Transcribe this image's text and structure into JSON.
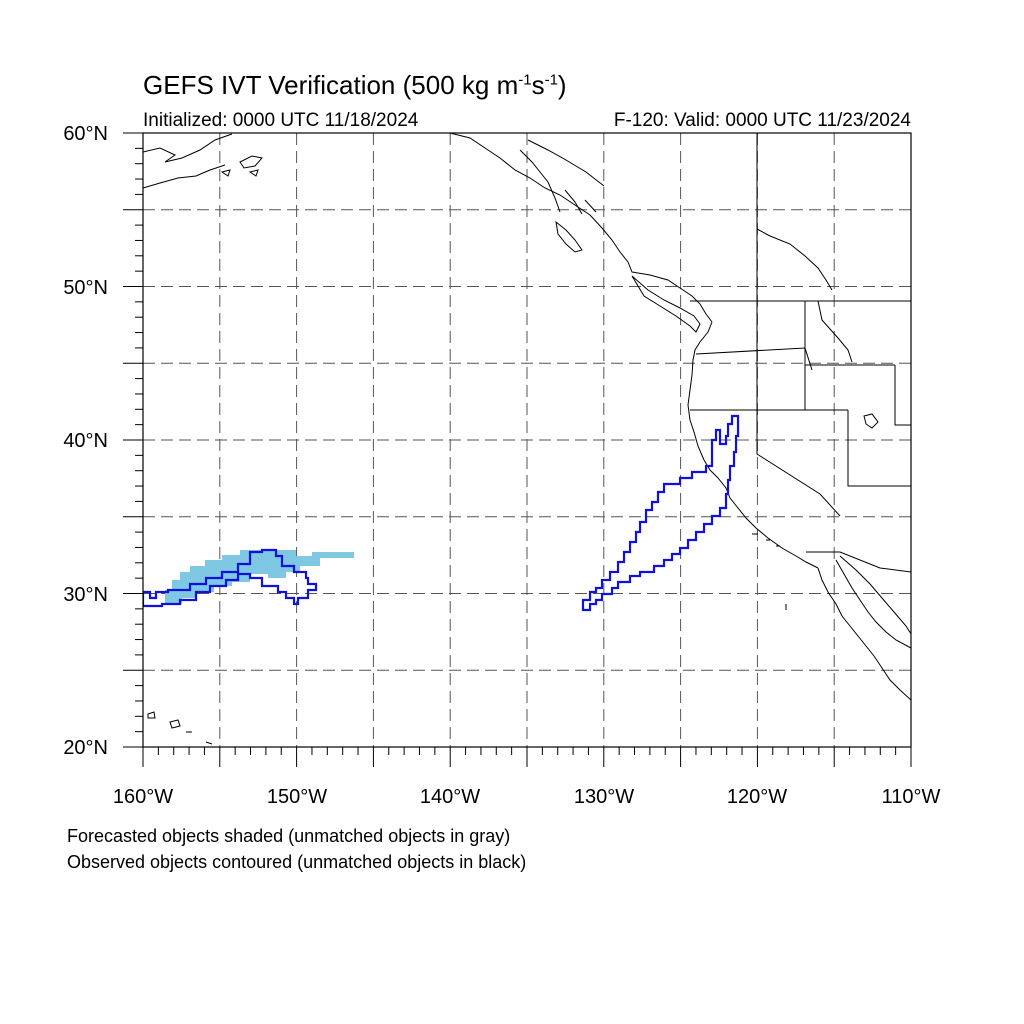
{
  "header": {
    "title": "GEFS IVT Verification (500 kg m",
    "title_sup1": "-1",
    "title_mid": "s",
    "title_sup2": "-1",
    "title_end": ")",
    "initialized": "Initialized: 0000 UTC 11/18/2024",
    "valid": "F-120: Valid: 0000 UTC 11/23/2024"
  },
  "axes": {
    "lat_labels": [
      "60°N",
      "50°N",
      "40°N",
      "30°N",
      "20°N"
    ],
    "lon_labels": [
      "160°W",
      "150°W",
      "140°W",
      "130°W",
      "120°W",
      "110°W"
    ],
    "lat_range": [
      20,
      60
    ],
    "lon_range": [
      -160,
      -110
    ]
  },
  "legend": {
    "line1": "Forecasted objects shaded (unmatched objects in gray)",
    "line2": "Observed objects contoured (unmatched objects in black)"
  },
  "colors": {
    "forecast_fill": "#7ec8e3",
    "observed_contour": "#1010e0",
    "coastline": "#000000",
    "grid": "#555555"
  },
  "layers": {
    "forecast_objects": "forecast-shaded-object",
    "observed_objects": "observed-contour-object",
    "basemap": "coastlines-and-borders"
  }
}
